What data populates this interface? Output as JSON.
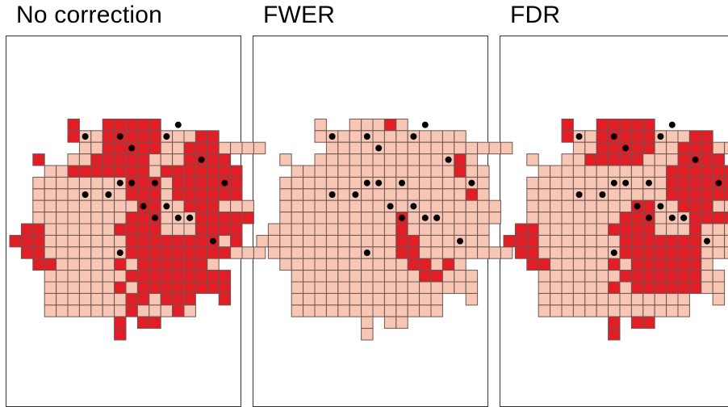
{
  "colors": {
    "not_significant": "#f8c6b5",
    "significant": "#e11d25",
    "cell_border": "#6b5652",
    "point": "#000000",
    "frame": "#333333"
  },
  "legend_semantics": {
    "light_cell": "not significant",
    "dark_cell": "significant"
  },
  "panels": [
    {
      "title": "No correction"
    },
    {
      "title": "FWER"
    },
    {
      "title": "FDR"
    }
  ],
  "grid": {
    "rows": [
      "----------------------",
      "-----x--xxxxx---------",
      "-----x..xxxxx...xx----",
      "------..xxxxx..xxx....",
      "--x--..xxxxx...xxxx---",
      "---..xxxxxxx.xxxxxxx--",
      "--........xxx.xxxxxx--",
      "--........xxx.xxxxxx--",
      "--.........xx..xxx...-",
      "--........xxx...xxxxx-",
      "-xx......xxxx...xxxx--",
      "xxx.......xxxxxxxx.x--",
      "-xx.......xxxxxxxxx...",
      "--xx.....x.xxxxxx.----",
      "---.......xxxxxxxxx---",
      "---......x.xxxxxxxx---",
      "---.......xx.xxx--x---",
      "---.......x...x.------",
      "---------x-xx---------",
      "---------x------------"
    ]
  }
}
